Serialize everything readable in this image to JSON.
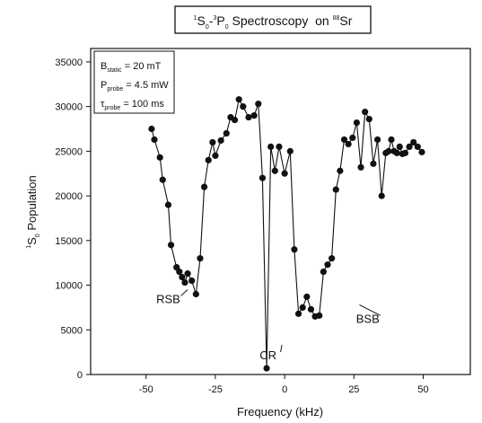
{
  "chart_data": {
    "type": "line",
    "title": {
      "s1": "1",
      "p1": "S",
      "s2": "0",
      "p2": "-",
      "s3": "3",
      "p3": "P",
      "s4": "0",
      "p4": " Spectroscopy  on ",
      "s5": "88",
      "p5": "Sr"
    },
    "xlabel": "Frequency (kHz)",
    "ylabel": {
      "sup": "1",
      "main": "S",
      "sub": "0",
      "rest": " Population"
    },
    "xlim": [
      -70,
      67
    ],
    "ylim": [
      0,
      36500
    ],
    "xticks": [
      -50,
      -25,
      0,
      25,
      50
    ],
    "yticks": [
      0,
      5000,
      10000,
      15000,
      20000,
      25000,
      30000,
      35000
    ],
    "grid": false,
    "legend_box": [
      {
        "main": "B",
        "sub": "static",
        "value": " = 20 mT"
      },
      {
        "main": "P",
        "sub": "probe",
        "value": " = 4.5 mW"
      },
      {
        "main": "τ",
        "sub": "probe",
        "value": " = 100 ms"
      }
    ],
    "annotations": [
      {
        "text": "RSB",
        "x": -42,
        "y": 8000,
        "ax": -35,
        "ay": 9500
      },
      {
        "text": "CR",
        "x": -6,
        "y": 1700,
        "ax": -1,
        "ay": 3300
      },
      {
        "text": "BSB",
        "x": 30,
        "y": 5800,
        "ax": 27,
        "ay": 7800
      }
    ],
    "series": [
      {
        "x": [
          -48,
          -47,
          -45,
          -44,
          -42,
          -41,
          -39,
          -38,
          -37,
          -36,
          -35,
          -33.5,
          -32,
          -30.5,
          -29,
          -27.5,
          -26,
          -25,
          -23,
          -21,
          -19.5,
          -18,
          -16.5,
          -15,
          -13,
          -11,
          -9.5,
          -8,
          -6.5,
          -5,
          -3.5,
          -2,
          0,
          2,
          3.5,
          5,
          6.5,
          8,
          9.5,
          11,
          12.5,
          14,
          15.5,
          17,
          18.5,
          20,
          21.5,
          23,
          24.5,
          26,
          27.5,
          29,
          30.5,
          32,
          33.5,
          35,
          36.5,
          37.5,
          38.5,
          39.5,
          40.5,
          41.5,
          42.5,
          43.5,
          45,
          46.5,
          48,
          49.5
        ],
        "y": [
          27500,
          26300,
          24300,
          21800,
          19000,
          14500,
          12000,
          11500,
          10900,
          10300,
          11300,
          10500,
          9000,
          13000,
          21000,
          24000,
          26000,
          24500,
          26200,
          27000,
          28800,
          28500,
          30800,
          30000,
          28800,
          29000,
          30300,
          22000,
          700,
          25500,
          22800,
          25500,
          22500,
          25000,
          14000,
          6800,
          7500,
          8700,
          7300,
          6500,
          6600,
          11500,
          12300,
          13000,
          20700,
          22800,
          26300,
          25800,
          26500,
          28200,
          23200,
          29400,
          28600,
          23600,
          26300,
          20000,
          24800,
          25000,
          26300,
          25000,
          24800,
          25500,
          24700,
          24800,
          25500,
          26000,
          25500,
          24900
        ]
      }
    ]
  }
}
